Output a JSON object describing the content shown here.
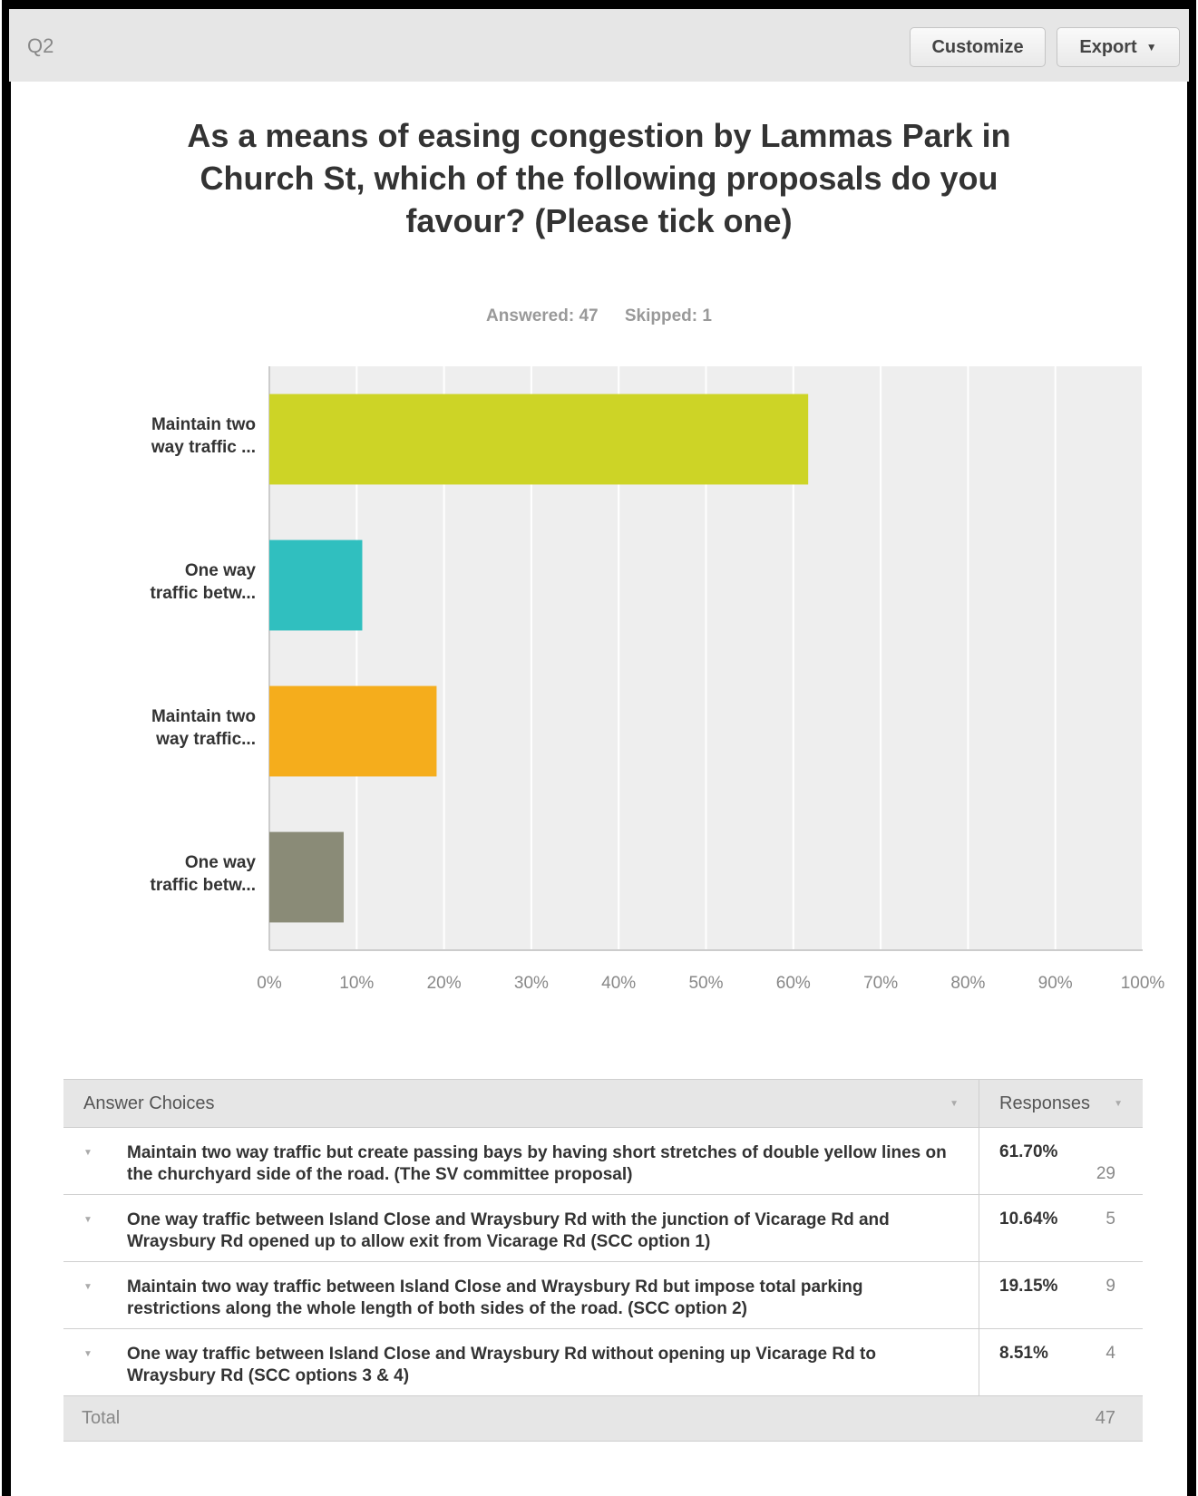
{
  "header": {
    "question_id": "Q2",
    "customize_label": "Customize",
    "export_label": "Export"
  },
  "title": "As a means of easing congestion by Lammas Park in Church St, which of the following proposals do you favour? (Please tick one)",
  "meta": {
    "answered": "Answered: 47",
    "skipped": "Skipped: 1"
  },
  "chart_data": {
    "type": "bar",
    "orientation": "horizontal",
    "title": "As a means of easing congestion by Lammas Park in Church St, which of the following proposals do you favour? (Please tick one)",
    "category_lines": [
      [
        "Maintain two",
        "way traffic ..."
      ],
      [
        "One way",
        "traffic betw..."
      ],
      [
        "Maintain two",
        "way traffic..."
      ],
      [
        "One way",
        "traffic betw..."
      ]
    ],
    "values": [
      61.7,
      10.64,
      19.15,
      8.51
    ],
    "colors": [
      "#cdd426",
      "#30bfbf",
      "#f5ad1c",
      "#8a8b77"
    ],
    "xlim": [
      0,
      100
    ],
    "x_ticks": [
      "0%",
      "10%",
      "20%",
      "30%",
      "40%",
      "50%",
      "60%",
      "70%",
      "80%",
      "90%",
      "100%"
    ],
    "grid": true
  },
  "table": {
    "col_choices": "Answer Choices",
    "col_responses": "Responses",
    "rows": [
      {
        "text": "Maintain two way traffic but create passing bays by having short stretches of double yellow lines on the churchyard side of the road. (The SV committee proposal)",
        "pct": "61.70%",
        "count": "29"
      },
      {
        "text": "One way traffic between Island Close and Wraysbury Rd with the junction of Vicarage Rd and Wraysbury Rd opened up to allow exit from Vicarage Rd (SCC option 1)",
        "pct": "10.64%",
        "count": "5"
      },
      {
        "text": "Maintain two way traffic between Island Close and Wraysbury Rd but impose total parking restrictions along the whole length of both sides of the road. (SCC option 2)",
        "pct": "19.15%",
        "count": "9"
      },
      {
        "text": "One way traffic between Island Close and Wraysbury Rd without opening up Vicarage Rd to Wraysbury Rd (SCC options 3 & 4)",
        "pct": "8.51%",
        "count": "4"
      }
    ],
    "total_label": "Total",
    "total_value": "47"
  }
}
